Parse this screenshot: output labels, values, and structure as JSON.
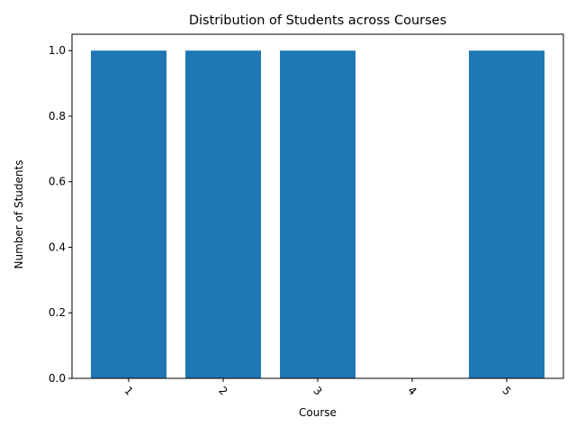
{
  "chart_data": {
    "type": "bar",
    "title": "Distribution of Students across Courses",
    "xlabel": "Course",
    "ylabel": "Number of Students",
    "categories": [
      "1",
      "2",
      "3",
      "4",
      "5"
    ],
    "values": [
      1,
      1,
      1,
      0,
      1
    ],
    "ylim": [
      0,
      1.05
    ],
    "yticks": [
      0.0,
      0.2,
      0.4,
      0.6,
      0.8,
      1.0
    ],
    "ytick_labels": [
      "0.0",
      "0.2",
      "0.4",
      "0.6",
      "0.8",
      "1.0"
    ],
    "xtick_rotation_deg": 45,
    "grid": false,
    "bar_color": "#1f77b4"
  }
}
